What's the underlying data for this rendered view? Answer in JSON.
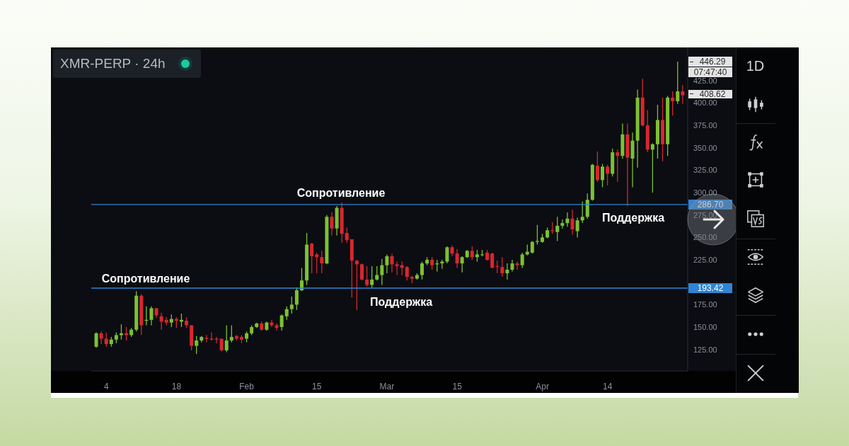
{
  "chart_data": {
    "type": "candlestick",
    "title": "XMR-PERP · 24h",
    "x": [
      "--01-02",
      "--01-03",
      "--01-04",
      "--01-05",
      "--01-06",
      "--01-07",
      "--01-08",
      "--01-09",
      "--01-10",
      "--01-11",
      "--01-12",
      "--01-13",
      "--01-14",
      "--01-15",
      "--01-16",
      "--01-17",
      "--01-18",
      "--01-19",
      "--01-20",
      "--01-21",
      "--01-22",
      "--01-23",
      "--01-24",
      "--01-25",
      "--01-26",
      "--01-27",
      "--01-28",
      "--01-29",
      "--01-30",
      "--01-31",
      "--02-01",
      "--02-02",
      "--02-03",
      "--02-04",
      "--02-05",
      "--02-06",
      "--02-07",
      "--02-08",
      "--02-09",
      "--02-10",
      "--02-11",
      "--02-12",
      "--02-13",
      "--02-14",
      "--02-15",
      "--02-16",
      "--02-17",
      "--02-18",
      "--02-19",
      "--02-20",
      "--02-21",
      "--02-22",
      "--02-23",
      "--02-24",
      "--02-25",
      "--02-26",
      "--02-27",
      "--02-28",
      "--03-01",
      "--03-02",
      "--03-03",
      "--03-04",
      "--03-05",
      "--03-06",
      "--03-07",
      "--03-08",
      "--03-09",
      "--03-10",
      "--03-11",
      "--03-12",
      "--03-13",
      "--03-14",
      "--03-15",
      "--03-16",
      "--03-17",
      "--03-18",
      "--03-19",
      "--03-20",
      "--03-21",
      "--03-22",
      "--03-23",
      "--03-24",
      "--03-25",
      "--03-26",
      "--03-27",
      "--03-28",
      "--03-29",
      "--03-30",
      "--03-31",
      "--04-01",
      "--04-02",
      "--04-03",
      "--04-04",
      "--04-05",
      "--04-06",
      "--04-07",
      "--04-08",
      "--04-09",
      "--04-10",
      "--04-11",
      "--04-12",
      "--04-13",
      "--04-14",
      "--04-15",
      "--04-16",
      "--04-17",
      "--04-18",
      "--04-19",
      "--04-20",
      "--04-21",
      "--04-22",
      "--04-23",
      "--04-24",
      "--04-25",
      "--04-26",
      "--04-27",
      "--04-28",
      "--04-29"
    ],
    "ohlc": [
      [
        128,
        144,
        127,
        143
      ],
      [
        143,
        145,
        131,
        137
      ],
      [
        137,
        144,
        128,
        131
      ],
      [
        131,
        139,
        128,
        136
      ],
      [
        136,
        144,
        132,
        141
      ],
      [
        141,
        153,
        136,
        143
      ],
      [
        143,
        150,
        135,
        141
      ],
      [
        141,
        149,
        139,
        147
      ],
      [
        147,
        190,
        145,
        185
      ],
      [
        185,
        187,
        141,
        152
      ],
      [
        157,
        173,
        152,
        158
      ],
      [
        158,
        173,
        152,
        171
      ],
      [
        171,
        171,
        160,
        163
      ],
      [
        162,
        166,
        147,
        156
      ],
      [
        158,
        161,
        152,
        155
      ],
      [
        155,
        164,
        150,
        159
      ],
      [
        159,
        161,
        149,
        157
      ],
      [
        156,
        165,
        150,
        158
      ],
      [
        157,
        161,
        149,
        152
      ],
      [
        152,
        152,
        124,
        129
      ],
      [
        129,
        140,
        120,
        135
      ],
      [
        135,
        140,
        133,
        139
      ],
      [
        138,
        141,
        133,
        137
      ],
      [
        137,
        144,
        135,
        136
      ],
      [
        137,
        139,
        132,
        136
      ],
      [
        137,
        137,
        123,
        124
      ],
      [
        124,
        152,
        122,
        135
      ],
      [
        135,
        152,
        133,
        139
      ],
      [
        140,
        141,
        135,
        137
      ],
      [
        139,
        141,
        132,
        136
      ],
      [
        137,
        145,
        133,
        143
      ],
      [
        143,
        152,
        141,
        150
      ],
      [
        150,
        155,
        149,
        154
      ],
      [
        154,
        156,
        146,
        147
      ],
      [
        147,
        156,
        146,
        155
      ],
      [
        155,
        158,
        150,
        152
      ],
      [
        152,
        154,
        146,
        149
      ],
      [
        150,
        164,
        146,
        163
      ],
      [
        162,
        173,
        158,
        170
      ],
      [
        170,
        184,
        165,
        175
      ],
      [
        175,
        194,
        169,
        191
      ],
      [
        191,
        216,
        190,
        202
      ],
      [
        202,
        255,
        197,
        242
      ],
      [
        243,
        244,
        210,
        229
      ],
      [
        231,
        233,
        210,
        228
      ],
      [
        228,
        235,
        210,
        221
      ],
      [
        221,
        275,
        220,
        273
      ],
      [
        273,
        278,
        252,
        260
      ],
      [
        260,
        285,
        252,
        283
      ],
      [
        283,
        289,
        244,
        254
      ],
      [
        255,
        261,
        244,
        247
      ],
      [
        248,
        248,
        183,
        224
      ],
      [
        224,
        225,
        169,
        220
      ],
      [
        220,
        221,
        202,
        203
      ],
      [
        203,
        218,
        195,
        197
      ],
      [
        197,
        218,
        194,
        203
      ],
      [
        203,
        218,
        202,
        208
      ],
      [
        208,
        226,
        197,
        219
      ],
      [
        219,
        231,
        210,
        229
      ],
      [
        229,
        232,
        211,
        220
      ],
      [
        220,
        223,
        208,
        218
      ],
      [
        219,
        223,
        208,
        216
      ],
      [
        217,
        218,
        202,
        206
      ],
      [
        206,
        207,
        199,
        204
      ],
      [
        204,
        210,
        203,
        208
      ],
      [
        208,
        223,
        203,
        221
      ],
      [
        221,
        228,
        219,
        225
      ],
      [
        225,
        228,
        214,
        219
      ],
      [
        220,
        225,
        212,
        221
      ],
      [
        221,
        225,
        215,
        223
      ],
      [
        223,
        240,
        221,
        239
      ],
      [
        239,
        241,
        229,
        232
      ],
      [
        232,
        237,
        216,
        221
      ],
      [
        221,
        229,
        211,
        228
      ],
      [
        228,
        236,
        227,
        235
      ],
      [
        235,
        240,
        225,
        228
      ],
      [
        228,
        236,
        223,
        231
      ],
      [
        231,
        236,
        229,
        231
      ],
      [
        233,
        236,
        224,
        225
      ],
      [
        232,
        233,
        216,
        216
      ],
      [
        218,
        224,
        210,
        217
      ],
      [
        217,
        228,
        206,
        210
      ],
      [
        210,
        221,
        203,
        214
      ],
      [
        214,
        225,
        212,
        221
      ],
      [
        221,
        223,
        214,
        219
      ],
      [
        219,
        233,
        216,
        231
      ],
      [
        231,
        242,
        230,
        234
      ],
      [
        233,
        246,
        232,
        245
      ],
      [
        245,
        264,
        242,
        246
      ],
      [
        245,
        254,
        244,
        250
      ],
      [
        250,
        261,
        249,
        258
      ],
      [
        258,
        267,
        254,
        257
      ],
      [
        256,
        273,
        246,
        263
      ],
      [
        263,
        270,
        260,
        266
      ],
      [
        266,
        278,
        262,
        271
      ],
      [
        271,
        281,
        253,
        259
      ],
      [
        257,
        272,
        250,
        269
      ],
      [
        269,
        290,
        266,
        273
      ],
      [
        273,
        299,
        271,
        292
      ],
      [
        292,
        332,
        291,
        331
      ],
      [
        330,
        346,
        312,
        314
      ],
      [
        314,
        332,
        306,
        329
      ],
      [
        329,
        331,
        308,
        321
      ],
      [
        321,
        349,
        318,
        345
      ],
      [
        345,
        348,
        312,
        341
      ],
      [
        341,
        377,
        338,
        365
      ],
      [
        365,
        377,
        285,
        339
      ],
      [
        338,
        367,
        306,
        358
      ],
      [
        358,
        415,
        328,
        406
      ],
      [
        406,
        427,
        374,
        375
      ],
      [
        375,
        392,
        345,
        348
      ],
      [
        348,
        355,
        300,
        354
      ],
      [
        354,
        398,
        338,
        381
      ],
      [
        381,
        406,
        335,
        354
      ],
      [
        354,
        408,
        341,
        406
      ],
      [
        406,
        413,
        386,
        402
      ],
      [
        402,
        446.29,
        399,
        413
      ],
      [
        413,
        420,
        399,
        408.62
      ]
    ],
    "colors": [
      "#7bc232",
      "#d9262f",
      "#d9262f",
      "#7bc232",
      "#7bc232",
      "#7bc232",
      "#d9262f",
      "#7bc232",
      "#7bc232",
      "#d9262f",
      "#7bc232",
      "#7bc232",
      "#d9262f",
      "#d9262f",
      "#d9262f",
      "#7bc232",
      "#d9262f",
      "#7bc232",
      "#d9262f",
      "#d9262f",
      "#7bc232",
      "#7bc232",
      "#d9262f",
      "#d9262f",
      "#d9262f",
      "#d9262f",
      "#7bc232",
      "#7bc232",
      "#d9262f",
      "#d9262f",
      "#7bc232",
      "#7bc232",
      "#7bc232",
      "#d9262f",
      "#7bc232",
      "#d9262f",
      "#d9262f",
      "#7bc232",
      "#7bc232",
      "#7bc232",
      "#7bc232",
      "#7bc232",
      "#7bc232",
      "#d9262f",
      "#d9262f",
      "#d9262f",
      "#7bc232",
      "#d9262f",
      "#7bc232",
      "#d9262f",
      "#d9262f",
      "#d9262f",
      "#d9262f",
      "#d9262f",
      "#d9262f",
      "#7bc232",
      "#7bc232",
      "#7bc232",
      "#7bc232",
      "#d9262f",
      "#d9262f",
      "#d9262f",
      "#d9262f",
      "#d9262f",
      "#7bc232",
      "#7bc232",
      "#7bc232",
      "#d9262f",
      "#7bc232",
      "#7bc232",
      "#7bc232",
      "#d9262f",
      "#d9262f",
      "#7bc232",
      "#7bc232",
      "#d9262f",
      "#7bc232",
      "#7bc232",
      "#d9262f",
      "#d9262f",
      "#d9262f",
      "#d9262f",
      "#7bc232",
      "#7bc232",
      "#d9262f",
      "#7bc232",
      "#7bc232",
      "#7bc232",
      "#7bc232",
      "#7bc232",
      "#7bc232",
      "#d9262f",
      "#7bc232",
      "#7bc232",
      "#7bc232",
      "#d9262f",
      "#7bc232",
      "#7bc232",
      "#7bc232",
      "#7bc232",
      "#d9262f",
      "#7bc232",
      "#d9262f",
      "#7bc232",
      "#d9262f",
      "#7bc232",
      "#d9262f",
      "#7bc232",
      "#7bc232",
      "#d9262f",
      "#d9262f",
      "#7bc232",
      "#7bc232",
      "#d9262f",
      "#7bc232",
      "#d9262f",
      "#7bc232",
      "#d9262f"
    ],
    "xlim": [
      "--01-01",
      "--04-30"
    ],
    "xticks": [
      {
        "value": "--01-04",
        "label": "4"
      },
      {
        "value": "--01-18",
        "label": "18"
      },
      {
        "value": "--02-01",
        "label": "Feb"
      },
      {
        "value": "--02-15",
        "label": "15"
      },
      {
        "value": "--03-01",
        "label": "Mar"
      },
      {
        "value": "--03-15",
        "label": "15"
      },
      {
        "value": "--04-01",
        "label": "Apr"
      },
      {
        "value": "--04-14",
        "label": "14"
      }
    ],
    "ylim": [
      101,
      462
    ],
    "yticks": [
      {
        "value": 125,
        "label": "125.00"
      },
      {
        "value": 150,
        "label": "150.00"
      },
      {
        "value": 175,
        "label": "175.00"
      },
      {
        "value": 225,
        "label": "225.00"
      },
      {
        "value": 250,
        "label": "250.00"
      },
      {
        "value": 275,
        "label": "275.00"
      },
      {
        "value": 300,
        "label": "300.00"
      },
      {
        "value": 325,
        "label": "325.00"
      },
      {
        "value": 350,
        "label": "350.00"
      },
      {
        "value": 375,
        "label": "375.00"
      },
      {
        "value": 400,
        "label": "400.00"
      },
      {
        "value": 425,
        "label": "425.00"
      }
    ],
    "ref_lines": [
      {
        "axis": "y",
        "value": 286.7,
        "label": "286.70",
        "color": "#2f84d4"
      },
      {
        "axis": "y",
        "value": 193.42,
        "label": "193.42",
        "color": "#2f84d4"
      }
    ],
    "annotations": [
      "Сопротивление",
      "Сопротивление",
      "Поддержка",
      "Поддержка",
      "446.29",
      "07:47:40",
      "408.62",
      "1D"
    ]
  }
}
